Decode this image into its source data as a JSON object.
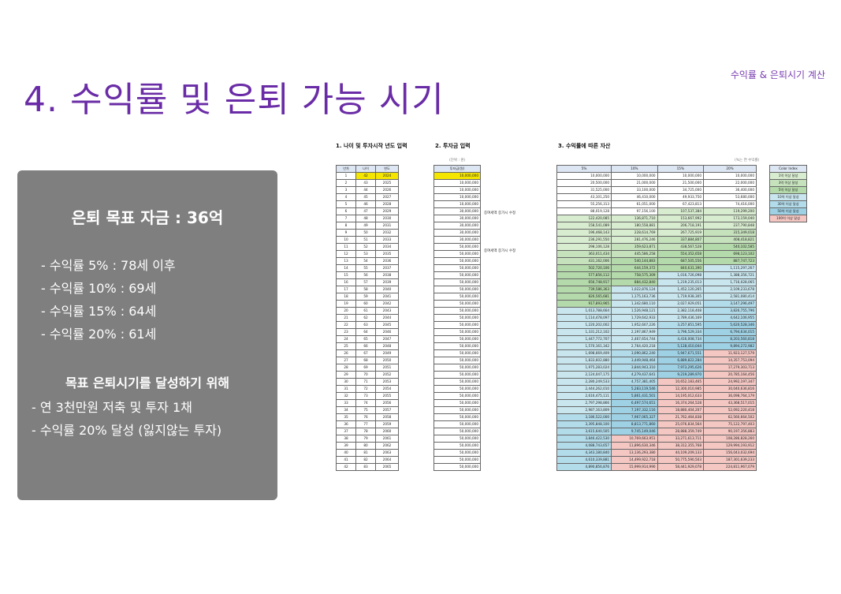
{
  "header": {
    "title": "4. 수익률 및 은퇴 가능 시기",
    "top_right": "수익률 & 은퇴시기 계산"
  },
  "goal_box": {
    "goal_title": "은퇴 목표 자금 : 36억",
    "rates": [
      "- 수익률   5% : 78세 이후",
      "- 수익률 10% : 69세",
      "- 수익률 15% : 64세",
      "- 수익률 20% : 61세"
    ],
    "plan_title": "목표 은퇴시기를 달성하기 위해",
    "plan_items": [
      "- 연 3천만원 저축 및 투자 1채",
      "- 수익률 20% 달성 (잃지않는 투자)"
    ]
  },
  "sheet": {
    "section1": "1. 나이 및 투자시작 년도 입력",
    "section2": "2. 투자금 입력",
    "section3": "3. 수익률에 따른 자산",
    "unit_note": "(단위 : 원)",
    "rate_note": "(%는 연 수익률)",
    "note_a": "증여세액 증가시 수정",
    "note_b": "증여세액 증가시 수정",
    "headers1": [
      "년차",
      "나이",
      "연도"
    ],
    "header2": "투자금(원)",
    "headers3": [
      "5%",
      "10%",
      "15%",
      "20%"
    ],
    "legend_header": "Color Index",
    "legend": [
      {
        "label": "1억 이상 달성",
        "color": "#d8ecd0"
      },
      {
        "label": "3억 이상 달성",
        "color": "#c6e2bd"
      },
      {
        "label": "5억 이상 달성",
        "color": "#b4d9aa"
      },
      {
        "label": "10억 이상 달성",
        "color": "#c9e6ef"
      },
      {
        "label": "30억 이상 달성",
        "color": "#b3dceb"
      },
      {
        "label": "50억 이상 달성",
        "color": "#9fd1e5"
      },
      {
        "label": "100억 이상 달성",
        "color": "#f4c7c3"
      }
    ],
    "investments": [
      "10,000,000",
      "10,000,000",
      "10,000,000",
      "10,000,000",
      "10,000,000",
      "30,000,000",
      "30,000,000",
      "30,000,000",
      "30,000,000",
      "30,000,000",
      "50,000,000",
      "50,000,000",
      "50,000,000",
      "50,000,000",
      "50,000,000",
      "50,000,000",
      "50,000,000",
      "50,000,000",
      "50,000,000",
      "50,000,000",
      "50,000,000",
      "50,000,000",
      "50,000,000",
      "50,000,000",
      "50,000,000",
      "50,000,000",
      "50,000,000",
      "50,000,000",
      "50,000,000",
      "50,000,000",
      "50,000,000",
      "50,000,000",
      "50,000,000",
      "50,000,000",
      "50,000,000",
      "50,000,000",
      "50,000,000",
      "50,000,000",
      "50,000,000",
      "50,000,000",
      "50,000,000",
      "50,000,000"
    ],
    "rows": [
      {
        "n": "1",
        "age": "42",
        "year": "2024",
        "v": [
          "10,000,000",
          "10,000,000",
          "10,000,000",
          "10,000,000"
        ]
      },
      {
        "n": "2",
        "age": "43",
        "year": "2025",
        "v": [
          "20,500,000",
          "21,000,000",
          "21,500,000",
          "22,000,000"
        ]
      },
      {
        "n": "3",
        "age": "44",
        "year": "2026",
        "v": [
          "31,525,000",
          "33,100,000",
          "34,725,000",
          "36,400,000"
        ]
      },
      {
        "n": "4",
        "age": "45",
        "year": "2027",
        "v": [
          "43,101,250",
          "46,410,000",
          "49,933,750",
          "53,680,000"
        ]
      },
      {
        "n": "5",
        "age": "46",
        "year": "2028",
        "v": [
          "55,256,313",
          "61,051,000",
          "67,423,813",
          "74,416,000"
        ]
      },
      {
        "n": "6",
        "age": "47",
        "year": "2029",
        "v": [
          "88,019,128",
          "97,156,100",
          "107,537,384",
          "119,299,200"
        ]
      },
      {
        "n": "7",
        "age": "48",
        "year": "2030",
        "v": [
          "122,420,085",
          "136,871,710",
          "153,667,992",
          "173,159,040"
        ]
      },
      {
        "n": "8",
        "age": "49",
        "year": "2031",
        "v": [
          "158,541,089",
          "180,558,881",
          "206,718,191",
          "237,790,848"
        ]
      },
      {
        "n": "9",
        "age": "50",
        "year": "2032",
        "v": [
          "196,468,143",
          "228,614,769",
          "267,725,919",
          "315,349,018"
        ]
      },
      {
        "n": "10",
        "age": "51",
        "year": "2033",
        "v": [
          "236,291,550",
          "281,476,246",
          "337,884,807",
          "408,418,821"
        ]
      },
      {
        "n": "11",
        "age": "52",
        "year": "2034",
        "v": [
          "298,106,128",
          "359,623,871",
          "438,567,528",
          "540,102,585"
        ]
      },
      {
        "n": "12",
        "age": "53",
        "year": "2035",
        "v": [
          "363,011,434",
          "445,586,258",
          "554,352,658",
          "698,123,102"
        ]
      },
      {
        "n": "13",
        "age": "54",
        "year": "2036",
        "v": [
          "431,162,006",
          "540,144,883",
          "687,505,556",
          "887,747,723"
        ]
      },
      {
        "n": "14",
        "age": "55",
        "year": "2037",
        "v": [
          "502,720,106",
          "644,159,372",
          "840,631,390",
          "1,115,297,267"
        ]
      },
      {
        "n": "15",
        "age": "56",
        "year": "2038",
        "v": [
          "577,856,112",
          "758,575,309",
          "1,016,726,098",
          "1,388,356,721"
        ]
      },
      {
        "n": "16",
        "age": "57",
        "year": "2039",
        "v": [
          "656,748,917",
          "884,432,840",
          "1,219,235,013",
          "1,716,028,065"
        ]
      },
      {
        "n": "17",
        "age": "58",
        "year": "2040",
        "v": [
          "739,586,363",
          "1,022,876,124",
          "1,452,120,265",
          "2,109,233,678"
        ]
      },
      {
        "n": "18",
        "age": "59",
        "year": "2041",
        "v": [
          "826,565,681",
          "1,175,163,736",
          "1,719,938,305",
          "2,581,080,414"
        ]
      },
      {
        "n": "19",
        "age": "60",
        "year": "2042",
        "v": [
          "917,893,965",
          "1,342,680,110",
          "2,027,929,051",
          "3,147,296,497"
        ]
      },
      {
        "n": "20",
        "age": "61",
        "year": "2043",
        "v": [
          "1,013,788,664",
          "1,526,948,121",
          "2,382,118,408",
          "3,826,755,796"
        ]
      },
      {
        "n": "21",
        "age": "62",
        "year": "2044",
        "v": [
          "1,114,478,097",
          "1,729,642,933",
          "2,789,436,169",
          "4,642,106,955"
        ]
      },
      {
        "n": "22",
        "age": "63",
        "year": "2045",
        "v": [
          "1,220,202,002",
          "1,952,607,226",
          "3,257,851,595",
          "5,620,528,346"
        ]
      },
      {
        "n": "23",
        "age": "64",
        "year": "2046",
        "v": [
          "1,331,212,102",
          "2,197,867,949",
          "3,796,529,334",
          "6,794,634,015"
        ]
      },
      {
        "n": "24",
        "age": "65",
        "year": "2047",
        "v": [
          "1,447,772,707",
          "2,467,654,744",
          "4,416,008,734",
          "8,203,560,818"
        ]
      },
      {
        "n": "25",
        "age": "66",
        "year": "2048",
        "v": [
          "1,570,161,342",
          "2,764,420,218",
          "5,128,410,044",
          "9,894,272,982"
        ]
      },
      {
        "n": "26",
        "age": "67",
        "year": "2049",
        "v": [
          "1,698,669,409",
          "3,090,862,240",
          "5,947,671,551",
          "11,923,127,579"
        ]
      },
      {
        "n": "27",
        "age": "68",
        "year": "2050",
        "v": [
          "1,833,602,880",
          "3,449,948,464",
          "6,889,822,284",
          "14,357,753,094"
        ]
      },
      {
        "n": "28",
        "age": "69",
        "year": "2051",
        "v": [
          "1,975,283,024",
          "3,844,943,310",
          "7,973,295,626",
          "17,279,303,713"
        ]
      },
      {
        "n": "29",
        "age": "70",
        "year": "2052",
        "v": [
          "2,124,047,175",
          "4,279,437,641",
          "9,219,289,970",
          "20,785,164,456"
        ]
      },
      {
        "n": "30",
        "age": "71",
        "year": "2053",
        "v": [
          "2,280,249,533",
          "4,757,381,405",
          "10,652,183,465",
          "24,992,197,347"
        ]
      },
      {
        "n": "31",
        "age": "72",
        "year": "2054",
        "v": [
          "2,444,262,010",
          "5,283,119,546",
          "12,300,010,985",
          "30,040,636,816"
        ]
      },
      {
        "n": "32",
        "age": "73",
        "year": "2055",
        "v": [
          "2,616,475,111",
          "5,861,431,501",
          "14,195,012,633",
          "36,098,764,179"
        ]
      },
      {
        "n": "33",
        "age": "74",
        "year": "2056",
        "v": [
          "2,797,298,866",
          "6,497,574,651",
          "16,374,264,528",
          "43,368,517,015"
        ]
      },
      {
        "n": "34",
        "age": "75",
        "year": "2057",
        "v": [
          "2,987,163,809",
          "7,197,332,116",
          "18,880,404,207",
          "52,092,220,418"
        ]
      },
      {
        "n": "35",
        "age": "76",
        "year": "2058",
        "v": [
          "3,186,522,000",
          "7,967,065,327",
          "21,762,464,838",
          "62,560,664,502"
        ]
      },
      {
        "n": "36",
        "age": "77",
        "year": "2059",
        "v": [
          "3,395,848,100",
          "8,813,771,860",
          "25,076,834,564",
          "75,122,797,403"
        ]
      },
      {
        "n": "37",
        "age": "78",
        "year": "2060",
        "v": [
          "3,615,640,505",
          "9,745,149,046",
          "28,888,359,749",
          "90,197,356,883"
        ]
      },
      {
        "n": "38",
        "age": "79",
        "year": "2061",
        "v": [
          "3,846,422,530",
          "10,769,663,951",
          "33,271,613,711",
          "108,286,828,260"
        ]
      },
      {
        "n": "39",
        "age": "80",
        "year": "2062",
        "v": [
          "4,088,743,657",
          "11,896,630,346",
          "38,312,355,768",
          "129,994,193,912"
        ]
      },
      {
        "n": "40",
        "age": "81",
        "year": "2063",
        "v": [
          "4,343,180,840",
          "13,136,293,380",
          "44,109,209,133",
          "156,043,032,694"
        ]
      },
      {
        "n": "41",
        "age": "82",
        "year": "2064",
        "v": [
          "4,610,339,881",
          "14,499,922,718",
          "50,775,590,503",
          "187,301,639,233"
        ]
      },
      {
        "n": "42",
        "age": "83",
        "year": "2065",
        "v": [
          "4,890,856,876",
          "15,999,914,990",
          "58,441,929,078",
          "224,811,967,079"
        ]
      }
    ],
    "tier_colors": {
      "t1": "#d8ecd0",
      "t3": "#c6e2bd",
      "t5": "#b4d9aa",
      "t10": "#c9e6ef",
      "t30": "#b3dceb",
      "t50": "#9fd1e5",
      "t100": "#f4c7c3",
      "input_highlight": "#f5e600"
    }
  }
}
